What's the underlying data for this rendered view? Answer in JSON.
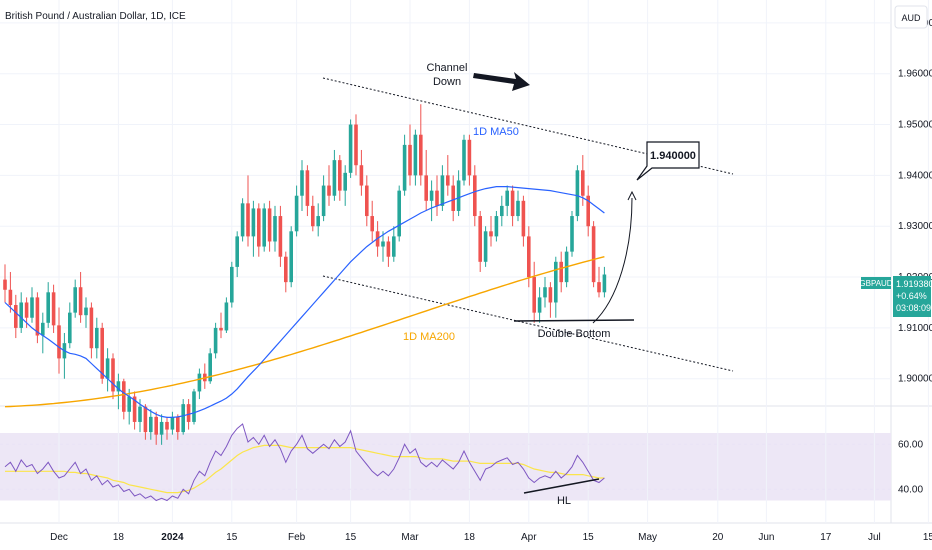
{
  "header": {
    "title": "British Pound / Australian Dollar, 1D, ICE",
    "currency": "AUD"
  },
  "colors": {
    "up": "#26a69a",
    "down": "#ef5350",
    "ma50": "#2962ff",
    "ma200": "#f7a600",
    "rsi": "#7e57c2",
    "rsi_ma": "#fbe54b",
    "rsi_band": "#ede7f6",
    "badge": "#26a69a"
  },
  "chart_data": {
    "type": "candlestick",
    "price_axis": {
      "ylim": [
        1.8968,
        1.9745
      ],
      "ticks": [
        "1.970000",
        "1.960000",
        "1.950000",
        "1.940000",
        "1.930000",
        "1.920000",
        "1.910000",
        "1.900000"
      ],
      "tick_values": [
        1.97,
        1.96,
        1.95,
        1.94,
        1.93,
        1.92,
        1.91,
        1.9
      ]
    },
    "time_axis": {
      "labels": [
        {
          "text": "Dec",
          "i": 10
        },
        {
          "text": "18",
          "i": 21
        },
        {
          "text": "2024",
          "i": 31
        },
        {
          "text": "15",
          "i": 42
        },
        {
          "text": "Feb",
          "i": 54
        },
        {
          "text": "15",
          "i": 64
        },
        {
          "text": "Mar",
          "i": 75
        },
        {
          "text": "18",
          "i": 86
        },
        {
          "text": "Apr",
          "i": 97
        },
        {
          "text": "15",
          "i": 108
        },
        {
          "text": "May",
          "i": 119
        },
        {
          "text": "20",
          "i": 132
        },
        {
          "text": "Jun",
          "i": 141
        },
        {
          "text": "17",
          "i": 152
        },
        {
          "text": "Jul",
          "i": 161
        },
        {
          "text": "15",
          "i": 171
        }
      ]
    },
    "candles": [
      [
        1.9195,
        1.9225,
        1.915,
        1.9175
      ],
      [
        1.9175,
        1.921,
        1.913,
        1.9145
      ],
      [
        1.9145,
        1.9165,
        1.908,
        1.91
      ],
      [
        1.91,
        1.917,
        1.909,
        1.915
      ],
      [
        1.915,
        1.916,
        1.91,
        1.912
      ],
      [
        1.912,
        1.918,
        1.911,
        1.916
      ],
      [
        1.916,
        1.917,
        1.907,
        1.9085
      ],
      [
        1.9085,
        1.913,
        1.905,
        1.911
      ],
      [
        1.911,
        1.919,
        1.91,
        1.917
      ],
      [
        1.917,
        1.9185,
        1.909,
        1.9105
      ],
      [
        1.9105,
        1.914,
        1.901,
        1.904
      ],
      [
        1.904,
        1.909,
        1.9,
        1.907
      ],
      [
        1.907,
        1.915,
        1.906,
        1.913
      ],
      [
        1.913,
        1.9195,
        1.912,
        1.918
      ],
      [
        1.918,
        1.921,
        1.911,
        1.9125
      ],
      [
        1.9125,
        1.916,
        1.91,
        1.914
      ],
      [
        1.914,
        1.915,
        1.904,
        1.906
      ],
      [
        1.906,
        1.912,
        1.904,
        1.91
      ],
      [
        1.91,
        1.911,
        1.899,
        1.9
      ],
      [
        1.9,
        1.906,
        1.8975,
        1.904
      ],
      [
        1.904,
        1.905,
        1.896,
        1.8975
      ],
      [
        1.8975,
        1.901,
        1.894,
        1.8995
      ],
      [
        1.8995,
        1.9,
        1.892,
        1.8935
      ],
      [
        1.8935,
        1.898,
        1.891,
        1.8965
      ],
      [
        1.8965,
        1.8975,
        1.89,
        1.8915
      ],
      [
        1.8915,
        1.896,
        1.8895,
        1.8945
      ],
      [
        1.8945,
        1.895,
        1.888,
        1.8895
      ],
      [
        1.8895,
        1.894,
        1.888,
        1.8925
      ],
      [
        1.8925,
        1.8935,
        1.887,
        1.889
      ],
      [
        1.889,
        1.893,
        1.887,
        1.8915
      ],
      [
        1.8915,
        1.8925,
        1.888,
        1.89
      ],
      [
        1.89,
        1.8935,
        1.889,
        1.8925
      ],
      [
        1.8925,
        1.893,
        1.888,
        1.8895
      ],
      [
        1.8895,
        1.896,
        1.889,
        1.895
      ],
      [
        1.895,
        1.896,
        1.89,
        1.8915
      ],
      [
        1.8915,
        1.898,
        1.891,
        1.8975
      ],
      [
        1.8975,
        1.902,
        1.896,
        1.901
      ],
      [
        1.901,
        1.903,
        1.898,
        1.8995
      ],
      [
        1.8995,
        1.906,
        1.899,
        1.905
      ],
      [
        1.905,
        1.911,
        1.904,
        1.91
      ],
      [
        1.91,
        1.913,
        1.908,
        1.9095
      ],
      [
        1.9095,
        1.916,
        1.909,
        1.915
      ],
      [
        1.915,
        1.923,
        1.914,
        1.922
      ],
      [
        1.922,
        1.929,
        1.92,
        1.928
      ],
      [
        1.928,
        1.9355,
        1.927,
        1.9345
      ],
      [
        1.9345,
        1.94,
        1.926,
        1.928
      ],
      [
        1.928,
        1.935,
        1.924,
        1.9335
      ],
      [
        1.9335,
        1.9345,
        1.924,
        1.926
      ],
      [
        1.926,
        1.9345,
        1.925,
        1.9335
      ],
      [
        1.9335,
        1.935,
        1.925,
        1.927
      ],
      [
        1.927,
        1.934,
        1.925,
        1.932
      ],
      [
        1.932,
        1.934,
        1.922,
        1.924
      ],
      [
        1.924,
        1.925,
        1.917,
        1.919
      ],
      [
        1.919,
        1.93,
        1.918,
        1.929
      ],
      [
        1.929,
        1.938,
        1.928,
        1.936
      ],
      [
        1.936,
        1.943,
        1.933,
        1.941
      ],
      [
        1.941,
        1.942,
        1.932,
        1.934
      ],
      [
        1.934,
        1.936,
        1.929,
        1.93
      ],
      [
        1.93,
        1.9345,
        1.928,
        1.932
      ],
      [
        1.932,
        1.94,
        1.931,
        1.938
      ],
      [
        1.938,
        1.942,
        1.934,
        1.936
      ],
      [
        1.936,
        1.945,
        1.935,
        1.943
      ],
      [
        1.943,
        1.944,
        1.935,
        1.937
      ],
      [
        1.937,
        1.942,
        1.934,
        1.9405
      ],
      [
        1.9405,
        1.951,
        1.9395,
        1.95
      ],
      [
        1.95,
        1.952,
        1.94,
        1.942
      ],
      [
        1.942,
        1.945,
        1.936,
        1.938
      ],
      [
        1.938,
        1.94,
        1.93,
        1.932
      ],
      [
        1.932,
        1.935,
        1.927,
        1.929
      ],
      [
        1.929,
        1.931,
        1.924,
        1.926
      ],
      [
        1.926,
        1.929,
        1.923,
        1.927
      ],
      [
        1.927,
        1.928,
        1.922,
        1.924
      ],
      [
        1.924,
        1.93,
        1.923,
        1.928
      ],
      [
        1.928,
        1.938,
        1.927,
        1.937
      ],
      [
        1.937,
        1.948,
        1.936,
        1.946
      ],
      [
        1.946,
        1.95,
        1.938,
        1.94
      ],
      [
        1.94,
        1.949,
        1.938,
        1.948
      ],
      [
        1.948,
        1.954,
        1.938,
        1.94
      ],
      [
        1.94,
        1.945,
        1.933,
        1.935
      ],
      [
        1.935,
        1.939,
        1.931,
        1.937
      ],
      [
        1.937,
        1.94,
        1.932,
        1.934
      ],
      [
        1.934,
        1.942,
        1.933,
        1.94
      ],
      [
        1.94,
        1.944,
        1.936,
        1.938
      ],
      [
        1.938,
        1.94,
        1.931,
        1.933
      ],
      [
        1.933,
        1.941,
        1.932,
        1.939
      ],
      [
        1.939,
        1.948,
        1.938,
        1.947
      ],
      [
        1.947,
        1.948,
        1.938,
        1.94
      ],
      [
        1.94,
        1.942,
        1.93,
        1.932
      ],
      [
        1.932,
        1.933,
        1.921,
        1.923
      ],
      [
        1.923,
        1.93,
        1.922,
        1.929
      ],
      [
        1.929,
        1.932,
        1.926,
        1.928
      ],
      [
        1.928,
        1.933,
        1.927,
        1.932
      ],
      [
        1.932,
        1.936,
        1.93,
        1.934
      ],
      [
        1.934,
        1.938,
        1.932,
        1.937
      ],
      [
        1.937,
        1.938,
        1.93,
        1.932
      ],
      [
        1.932,
        1.937,
        1.931,
        1.935
      ],
      [
        1.935,
        1.936,
        1.926,
        1.928
      ],
      [
        1.928,
        1.93,
        1.918,
        1.92
      ],
      [
        1.92,
        1.923,
        1.911,
        1.913
      ],
      [
        1.913,
        1.918,
        1.911,
        1.916
      ],
      [
        1.916,
        1.92,
        1.914,
        1.918
      ],
      [
        1.918,
        1.919,
        1.912,
        1.915
      ],
      [
        1.915,
        1.924,
        1.912,
        1.923
      ],
      [
        1.923,
        1.925,
        1.917,
        1.919
      ],
      [
        1.919,
        1.926,
        1.918,
        1.925
      ],
      [
        1.925,
        1.933,
        1.924,
        1.932
      ],
      [
        1.932,
        1.942,
        1.931,
        1.941
      ],
      [
        1.941,
        1.944,
        1.934,
        1.936
      ],
      [
        1.936,
        1.938,
        1.928,
        1.93
      ],
      [
        1.93,
        1.931,
        1.918,
        1.919
      ],
      [
        1.919,
        1.922,
        1.916,
        1.917
      ],
      [
        1.917,
        1.922,
        1.916,
        1.9205
      ]
    ],
    "ma50": [
      1.915,
      1.914,
      1.913,
      1.912,
      1.911,
      1.91,
      1.9092,
      1.9085,
      1.9078,
      1.907,
      1.9062,
      1.9055,
      1.905,
      1.9048,
      1.9045,
      1.904,
      1.903,
      1.902,
      1.901,
      1.9,
      1.899,
      1.898,
      1.8972,
      1.8965,
      1.8958,
      1.895,
      1.8943,
      1.8936,
      1.893,
      1.8926,
      1.8924,
      1.8924,
      1.8925,
      1.8927,
      1.893,
      1.8933,
      1.8937,
      1.8941,
      1.8946,
      1.8951,
      1.8956,
      1.8962,
      1.897,
      1.898,
      1.8992,
      1.9004,
      1.9015,
      1.9026,
      1.9038,
      1.905,
      1.9062,
      1.9074,
      1.9086,
      1.9098,
      1.911,
      1.9122,
      1.9134,
      1.9146,
      1.9158,
      1.917,
      1.9182,
      1.9194,
      1.9206,
      1.9218,
      1.923,
      1.924,
      1.925,
      1.926,
      1.9268,
      1.9276,
      1.9283,
      1.929,
      1.9296,
      1.9302,
      1.9308,
      1.9314,
      1.932,
      1.9326,
      1.9331,
      1.9336,
      1.934,
      1.9344,
      1.9348,
      1.9352,
      1.9356,
      1.936,
      1.9364,
      1.9368,
      1.9371,
      1.9374,
      1.9376,
      1.9378,
      1.9378,
      1.9378,
      1.9377,
      1.9376,
      1.9375,
      1.9374,
      1.9373,
      1.9372,
      1.9371,
      1.937,
      1.9368,
      1.9366,
      1.9364,
      1.9362,
      1.936,
      1.9356,
      1.935,
      1.9342,
      1.9334,
      1.9326
    ],
    "ma200_start": 1.8945,
    "ma200_end": 1.924,
    "rsi_axis": {
      "ylim": [
        25,
        77
      ],
      "ticks": [
        "60.00",
        "40.00"
      ],
      "tick_values": [
        60,
        40
      ],
      "band": [
        35,
        65
      ]
    },
    "rsi": [
      50,
      52,
      48,
      53,
      50,
      51,
      47,
      49,
      52,
      48,
      45,
      46,
      49,
      52,
      47,
      49,
      44,
      46,
      42,
      44,
      41,
      42,
      39,
      40,
      37,
      38,
      36,
      37,
      35,
      36,
      35,
      37,
      36,
      40,
      38,
      44,
      48,
      46,
      52,
      57,
      55,
      59,
      64,
      67,
      69,
      61,
      63,
      60,
      64,
      59,
      62,
      58,
      52,
      57,
      60,
      64,
      58,
      56,
      58,
      60,
      58,
      62,
      59,
      61,
      66,
      57,
      54,
      51,
      48,
      46,
      48,
      46,
      49,
      54,
      60,
      56,
      58,
      52,
      50,
      52,
      50,
      53,
      51,
      49,
      52,
      57,
      52,
      48,
      44,
      49,
      50,
      52,
      53,
      54,
      51,
      52,
      49,
      45,
      43,
      45,
      46,
      45,
      48,
      45,
      47,
      50,
      55,
      52,
      48,
      44,
      43,
      45
    ],
    "rsi_ma": [
      48,
      48,
      48,
      48,
      48,
      48,
      48,
      48,
      48,
      48,
      48,
      48,
      47.5,
      47.5,
      47,
      47,
      46.5,
      46,
      45.5,
      45,
      44,
      43.5,
      43,
      42,
      41.5,
      41,
      40.5,
      40,
      39.5,
      39,
      38.5,
      38.5,
      38.5,
      39,
      39.5,
      40.5,
      42,
      43.5,
      45.5,
      47.5,
      49,
      51,
      53,
      55,
      56.5,
      57.5,
      58.5,
      59,
      59.5,
      59.5,
      59.5,
      59.5,
      59,
      58.5,
      58.5,
      58.5,
      58.5,
      58.5,
      58.5,
      58.5,
      58.5,
      58.5,
      58.5,
      58.5,
      58.5,
      58,
      57.5,
      57,
      56.5,
      56,
      55.5,
      55,
      54.5,
      54.5,
      54.5,
      54.5,
      54.5,
      54,
      53.5,
      53.5,
      53.5,
      53.5,
      53,
      52.5,
      52.5,
      52.5,
      52.5,
      52,
      51.5,
      51.5,
      51.5,
      51.5,
      51.5,
      51.5,
      51.5,
      51.5,
      51,
      50,
      49,
      48.5,
      48,
      47.5,
      47.5,
      47,
      46.5,
      46.5,
      46.5,
      46.5,
      46,
      45.5,
      45,
      45
    ],
    "price_badge": {
      "symbol": "GBPAUD",
      "price": "1.919380",
      "change": "+0.64%",
      "countdown": "03:08:09"
    }
  },
  "annotations": {
    "channel_label": [
      "Channel",
      "Down"
    ],
    "ma50_label": "1D MA50",
    "ma200_label": "1D MA200",
    "target_label": "1.940000",
    "double_bottom_label": "Double Bottom",
    "hl_label": "HL"
  }
}
